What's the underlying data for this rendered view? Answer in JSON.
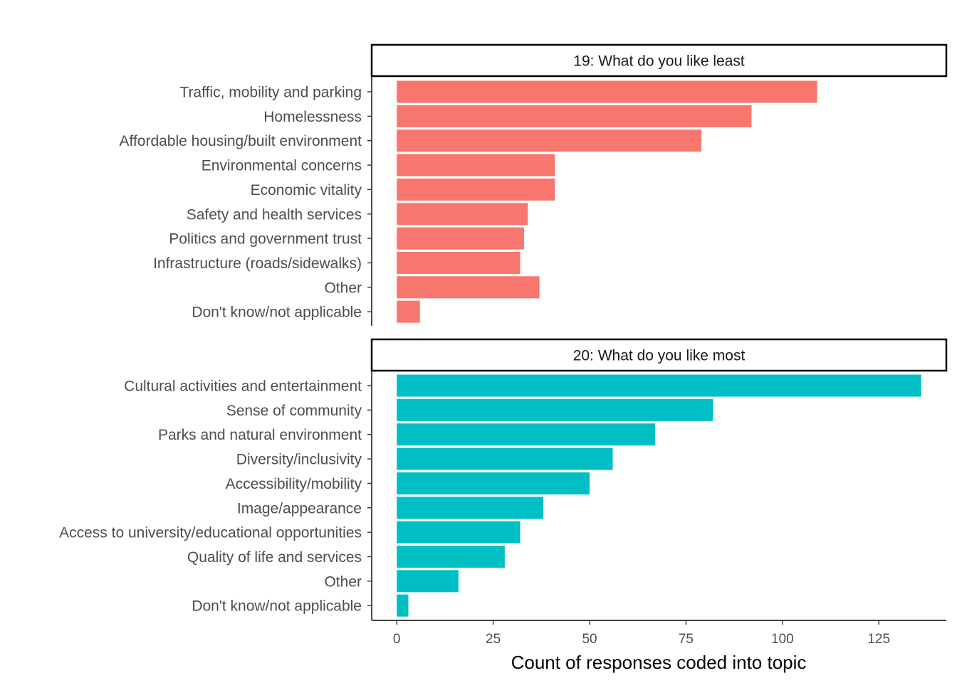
{
  "chart_data": {
    "type": "bar",
    "orientation": "horizontal",
    "xlabel": "Count of responses coded into topic",
    "x_ticks": [
      0,
      25,
      50,
      75,
      100,
      125
    ],
    "xlim": [
      -6.5,
      142.5
    ],
    "grid": false,
    "panels": [
      {
        "title": "19: What do you like least",
        "color": "#F8766D",
        "categories": [
          "Traffic, mobility and parking",
          "Homelessness",
          "Affordable housing/built environment",
          "Environmental concerns",
          "Economic vitality",
          "Safety and health services",
          "Politics and government trust",
          "Infrastructure (roads/sidewalks)",
          "Other",
          "Don't know/not applicable"
        ],
        "values": [
          109,
          92,
          79,
          41,
          41,
          34,
          33,
          32,
          37,
          6
        ]
      },
      {
        "title": "20: What do you like most",
        "color": "#00BFC4",
        "categories": [
          "Cultural activities and entertainment",
          "Sense of community",
          "Parks and natural environment",
          "Diversity/inclusivity",
          "Accessibility/mobility",
          "Image/appearance",
          "Access to university/educational opportunities",
          "Quality of life and services",
          "Other",
          "Don't know/not applicable"
        ],
        "values": [
          136,
          82,
          67,
          56,
          50,
          38,
          32,
          28,
          16,
          3
        ]
      }
    ]
  }
}
